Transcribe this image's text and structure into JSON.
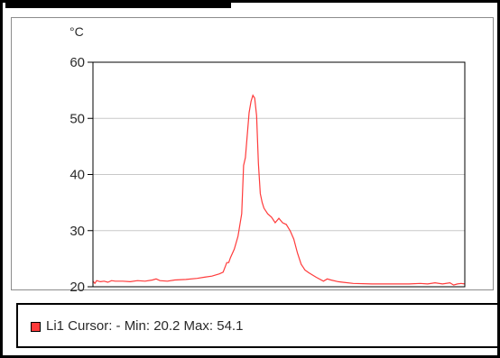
{
  "chart_data": {
    "type": "line",
    "unit_label": "°C",
    "ylim": [
      20,
      60
    ],
    "yticks": [
      20,
      30,
      40,
      50,
      60
    ],
    "grid": true,
    "series": [
      {
        "name": "Li1",
        "color": "#ff3b3b",
        "x": [
          0,
          0.5,
          1,
          2,
          3,
          4,
          5,
          6,
          8,
          10,
          12,
          14,
          16,
          17,
          18,
          20,
          22,
          25,
          28,
          30,
          32,
          34,
          35,
          36,
          36.5,
          37,
          38,
          39,
          40,
          40.5,
          41,
          42,
          42.5,
          43,
          43.5,
          44,
          44.5,
          45,
          45.5,
          46,
          47,
          48,
          49,
          50,
          51,
          52,
          53,
          54,
          55,
          56,
          56.5,
          57,
          58,
          60,
          62,
          63,
          64,
          66,
          70,
          75,
          80,
          85,
          88,
          90,
          92,
          94,
          96,
          97,
          98,
          99,
          100
        ],
        "values": [
          21.0,
          20.6,
          21.1,
          20.9,
          21.0,
          20.8,
          21.1,
          21.0,
          21.0,
          20.9,
          21.1,
          21.0,
          21.2,
          21.4,
          21.1,
          21.0,
          21.2,
          21.3,
          21.5,
          21.7,
          21.9,
          22.3,
          22.6,
          24.3,
          24.3,
          25.2,
          26.7,
          29.0,
          33.0,
          41.6,
          43.0,
          51.0,
          53.0,
          54.1,
          53.6,
          50.5,
          42.0,
          36.6,
          35.0,
          34.0,
          33.0,
          32.4,
          31.4,
          32.2,
          31.4,
          31.1,
          30.0,
          28.5,
          26.0,
          24.0,
          23.5,
          23.0,
          22.5,
          21.7,
          21.0,
          21.4,
          21.2,
          20.9,
          20.6,
          20.5,
          20.5,
          20.5,
          20.6,
          20.5,
          20.7,
          20.5,
          20.7,
          20.3,
          20.5,
          20.6,
          20.5
        ]
      }
    ]
  },
  "legend": {
    "series_label": "Li1",
    "text": "Li1 Cursor: - Min: 20.2 Max: 54.1",
    "swatch_color": "#ff3b3b"
  }
}
